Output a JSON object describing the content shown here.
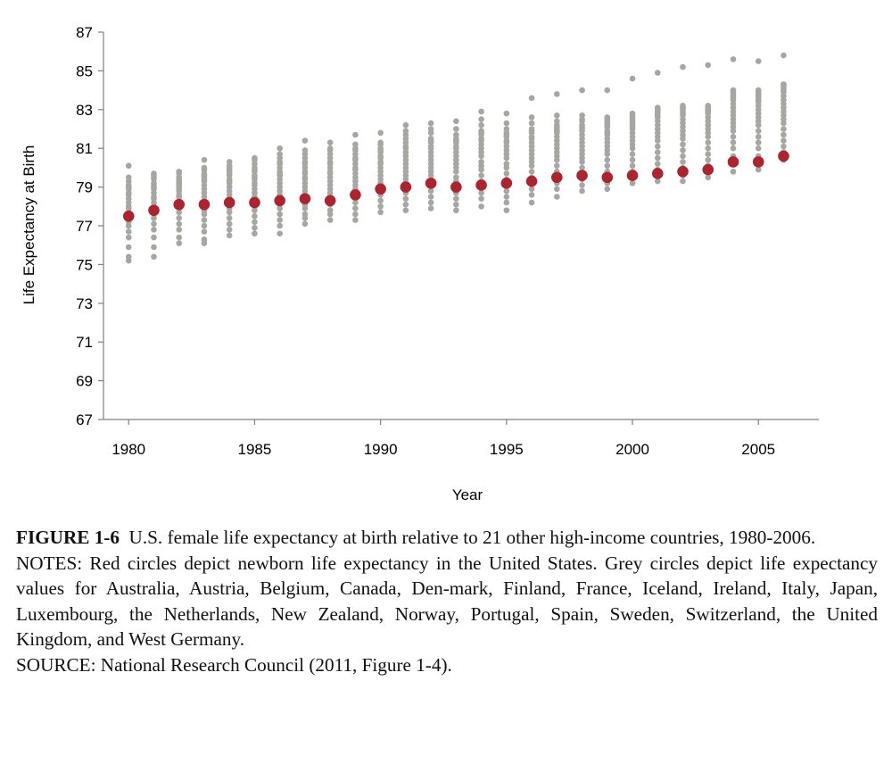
{
  "chart_data": {
    "type": "scatter",
    "title": "",
    "xlabel": "Year",
    "ylabel": "Life Expectancy at Birth",
    "xlim": [
      1979,
      2007.4
    ],
    "ylim": [
      67,
      87
    ],
    "x_ticks": [
      1980,
      1985,
      1990,
      1995,
      2000,
      2005
    ],
    "y_ticks": [
      67,
      69,
      71,
      73,
      75,
      77,
      79,
      81,
      83,
      85,
      87
    ],
    "grid": false,
    "legend": "none",
    "series": [
      {
        "color": "#a6a6a2",
        "x": [
          1980,
          1981,
          1982,
          1983,
          1984,
          1985,
          1986,
          1987,
          1988,
          1989,
          1990,
          1991,
          1992,
          1993,
          1994,
          1995,
          1996,
          1997,
          1998,
          1999,
          2000,
          2001,
          2002,
          2003,
          2004,
          2005,
          2006
        ],
        "y": [
          [
            75.2,
            75.4,
            75.9,
            76.4,
            76.7,
            77.0,
            77.2,
            77.5,
            77.7,
            77.9,
            78.0,
            78.2,
            78.4,
            78.6,
            78.7,
            78.9,
            79.0,
            79.1,
            79.3,
            79.5,
            80.1
          ],
          [
            75.4,
            75.9,
            76.4,
            76.8,
            77.1,
            77.4,
            77.6,
            77.8,
            78.0,
            78.2,
            78.4,
            78.5,
            78.7,
            78.9,
            79.0,
            79.1,
            79.2,
            79.4,
            79.5,
            79.6,
            79.7
          ],
          [
            76.1,
            76.4,
            76.8,
            77.1,
            77.4,
            77.7,
            77.9,
            78.1,
            78.3,
            78.5,
            78.6,
            78.8,
            78.9,
            79.0,
            79.1,
            79.2,
            79.3,
            79.4,
            79.5,
            79.7,
            79.8
          ],
          [
            76.1,
            76.3,
            76.7,
            77.0,
            77.3,
            77.6,
            77.8,
            78.1,
            78.3,
            78.5,
            78.7,
            78.9,
            79.1,
            79.3,
            79.4,
            79.5,
            79.6,
            79.7,
            79.9,
            80.0,
            80.4
          ],
          [
            76.5,
            76.8,
            77.1,
            77.4,
            77.7,
            77.9,
            78.2,
            78.4,
            78.6,
            78.8,
            79.0,
            79.2,
            79.3,
            79.4,
            79.6,
            79.7,
            79.8,
            79.9,
            80.0,
            80.1,
            80.3
          ],
          [
            76.6,
            76.9,
            77.2,
            77.5,
            77.8,
            78.0,
            78.2,
            78.5,
            78.7,
            78.9,
            79.1,
            79.2,
            79.4,
            79.5,
            79.6,
            79.8,
            79.9,
            80.0,
            80.2,
            80.4,
            80.5
          ],
          [
            76.6,
            77.0,
            77.3,
            77.6,
            77.9,
            78.1,
            78.4,
            78.6,
            78.8,
            79.0,
            79.2,
            79.4,
            79.6,
            79.7,
            79.8,
            80.0,
            80.2,
            80.3,
            80.5,
            80.7,
            81.0
          ],
          [
            77.1,
            77.4,
            77.6,
            77.9,
            78.1,
            78.3,
            78.6,
            78.8,
            79.0,
            79.2,
            79.4,
            79.5,
            79.7,
            79.8,
            80.0,
            80.2,
            80.3,
            80.5,
            80.7,
            80.9,
            81.4
          ],
          [
            77.3,
            77.6,
            77.8,
            78.1,
            78.3,
            78.5,
            78.7,
            78.9,
            79.1,
            79.3,
            79.5,
            79.7,
            79.8,
            80.0,
            80.2,
            80.3,
            80.5,
            80.7,
            80.9,
            81.0,
            81.3
          ],
          [
            77.3,
            77.6,
            77.9,
            78.2,
            78.4,
            78.7,
            78.9,
            79.1,
            79.3,
            79.5,
            79.7,
            79.9,
            80.0,
            80.2,
            80.4,
            80.5,
            80.7,
            80.9,
            81.0,
            81.2,
            81.7
          ],
          [
            77.7,
            78.0,
            78.3,
            78.6,
            78.8,
            79.0,
            79.2,
            79.4,
            79.6,
            79.8,
            80.0,
            80.2,
            80.3,
            80.5,
            80.6,
            80.8,
            80.9,
            81.0,
            81.2,
            81.3,
            81.8
          ],
          [
            77.8,
            78.1,
            78.4,
            78.7,
            79.0,
            79.2,
            79.4,
            79.6,
            79.8,
            80.0,
            80.2,
            80.4,
            80.6,
            80.8,
            81.0,
            81.1,
            81.3,
            81.5,
            81.7,
            81.9,
            82.2
          ],
          [
            77.9,
            78.2,
            78.5,
            78.8,
            79.1,
            79.3,
            79.6,
            79.8,
            80.0,
            80.2,
            80.4,
            80.6,
            80.8,
            81.0,
            81.1,
            81.3,
            81.4,
            81.5,
            81.8,
            82.0,
            82.3
          ],
          [
            77.8,
            78.1,
            78.4,
            78.7,
            79.0,
            79.3,
            79.5,
            79.8,
            80.0,
            80.2,
            80.4,
            80.6,
            80.8,
            81.0,
            81.1,
            81.3,
            81.4,
            81.5,
            81.7,
            82.0,
            82.4
          ],
          [
            78.0,
            78.4,
            78.7,
            79.0,
            79.3,
            79.6,
            79.9,
            80.1,
            80.3,
            80.6,
            80.8,
            81.0,
            81.2,
            81.4,
            81.5,
            81.7,
            81.8,
            81.9,
            82.2,
            82.5,
            82.9
          ],
          [
            77.8,
            78.2,
            78.5,
            78.8,
            79.1,
            79.4,
            79.7,
            80.0,
            80.2,
            80.5,
            80.7,
            80.9,
            81.1,
            81.3,
            81.4,
            81.6,
            81.7,
            81.8,
            82.0,
            82.3,
            82.8
          ],
          [
            78.2,
            78.6,
            78.9,
            79.2,
            79.5,
            79.8,
            80.1,
            80.3,
            80.5,
            80.7,
            80.9,
            81.1,
            81.3,
            81.5,
            81.6,
            81.8,
            81.9,
            82.0,
            82.3,
            82.6,
            83.6
          ],
          [
            78.5,
            78.9,
            79.2,
            79.5,
            79.8,
            80.1,
            80.4,
            80.6,
            80.8,
            81.0,
            81.2,
            81.4,
            81.6,
            81.8,
            81.9,
            82.0,
            82.1,
            82.2,
            82.4,
            82.7,
            83.8
          ],
          [
            78.8,
            79.1,
            79.4,
            79.7,
            80.0,
            80.3,
            80.5,
            80.7,
            80.9,
            81.1,
            81.3,
            81.5,
            81.7,
            81.9,
            82.0,
            82.1,
            82.2,
            82.4,
            82.5,
            82.7,
            84.0
          ],
          [
            78.9,
            79.2,
            79.5,
            79.8,
            80.1,
            80.4,
            80.7,
            80.9,
            81.1,
            81.3,
            81.5,
            81.7,
            81.8,
            81.9,
            82.1,
            82.2,
            82.3,
            82.4,
            82.5,
            82.6,
            84.0
          ],
          [
            79.2,
            79.5,
            79.8,
            80.1,
            80.4,
            80.7,
            81.0,
            81.2,
            81.4,
            81.6,
            81.8,
            82.0,
            82.1,
            82.2,
            82.3,
            82.4,
            82.5,
            82.6,
            82.7,
            82.8,
            84.6
          ],
          [
            79.3,
            79.6,
            79.9,
            80.2,
            80.5,
            80.8,
            81.1,
            81.4,
            81.6,
            81.8,
            82.0,
            82.2,
            82.4,
            82.6,
            82.7,
            82.8,
            82.9,
            83.0,
            83.0,
            83.1,
            84.9
          ],
          [
            79.3,
            79.6,
            80.0,
            80.3,
            80.6,
            80.9,
            81.2,
            81.5,
            81.7,
            81.9,
            82.1,
            82.3,
            82.5,
            82.7,
            82.8,
            82.9,
            83.0,
            83.1,
            83.1,
            83.2,
            85.2
          ],
          [
            79.5,
            79.8,
            80.1,
            80.4,
            80.7,
            81.0,
            81.3,
            81.6,
            81.8,
            82.0,
            82.2,
            82.4,
            82.6,
            82.8,
            82.9,
            83.0,
            83.0,
            83.1,
            83.1,
            83.2,
            85.3
          ],
          [
            79.8,
            80.2,
            80.6,
            81.0,
            81.3,
            81.6,
            81.9,
            82.1,
            82.3,
            82.5,
            82.7,
            82.9,
            83.1,
            83.3,
            83.5,
            83.6,
            83.7,
            83.8,
            83.9,
            84.0,
            85.6
          ],
          [
            79.9,
            80.2,
            80.6,
            81.0,
            81.3,
            81.6,
            81.9,
            82.2,
            82.4,
            82.6,
            82.8,
            83.0,
            83.2,
            83.4,
            83.5,
            83.6,
            83.7,
            83.8,
            83.9,
            84.0,
            85.5
          ],
          [
            80.4,
            80.8,
            81.1,
            81.4,
            81.7,
            82.0,
            82.3,
            82.5,
            82.7,
            82.9,
            83.1,
            83.3,
            83.5,
            83.7,
            83.9,
            84.0,
            84.1,
            84.2,
            84.3,
            84.3,
            85.8
          ]
        ]
      },
      {
        "color": "#ad2330",
        "x": [
          1980,
          1981,
          1982,
          1983,
          1984,
          1985,
          1986,
          1987,
          1988,
          1989,
          1990,
          1991,
          1992,
          1993,
          1994,
          1995,
          1996,
          1997,
          1998,
          1999,
          2000,
          2001,
          2002,
          2003,
          2004,
          2005,
          2006
        ],
        "y": [
          77.5,
          77.8,
          78.1,
          78.1,
          78.2,
          78.2,
          78.3,
          78.4,
          78.3,
          78.6,
          78.9,
          79.0,
          79.2,
          79.0,
          79.1,
          79.2,
          79.3,
          79.5,
          79.6,
          79.5,
          79.6,
          79.7,
          79.8,
          79.9,
          80.3,
          80.3,
          80.6
        ]
      }
    ]
  },
  "caption": {
    "figure_label": "FIGURE 1-6",
    "figure_text": "U.S. female life expectancy at birth relative to 21 other high-income countries, 1980-2006.",
    "notes": "NOTES: Red circles depict newborn life expectancy in the United States. Grey circles depict life expectancy values for Australia, Austria, Belgium, Canada, Den-mark, Finland, France, Iceland, Ireland, Italy, Japan, Luxembourg, the Netherlands, New Zealand, Norway, Portugal, Spain, Sweden, Switzerland, the United Kingdom, and West Germany.",
    "source": "SOURCE: National Research Council (2011, Figure 1-4)."
  }
}
